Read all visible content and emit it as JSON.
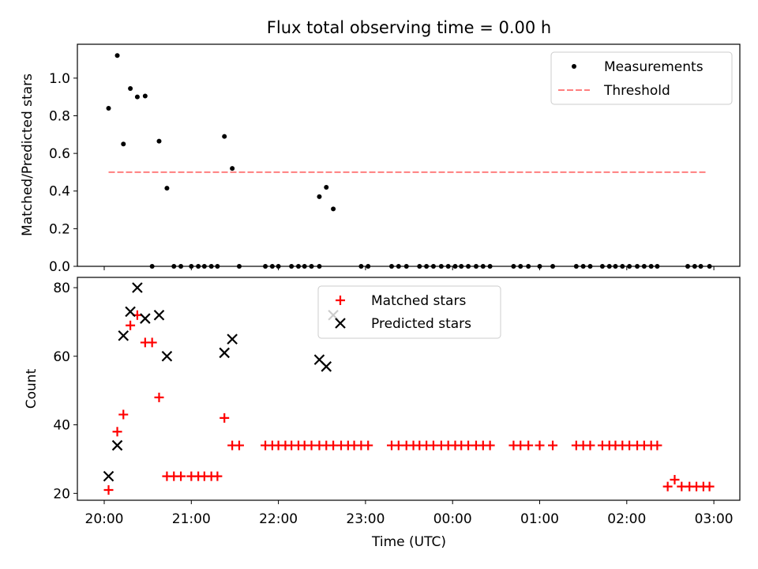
{
  "title": "Flux total observing time = 0.00 h",
  "colors": {
    "measurement": "#000000",
    "threshold": "#ff7f7f",
    "matched": "#ff0000",
    "predicted": "#000000"
  },
  "chart_data": [
    {
      "type": "scatter",
      "ylabel": "Matched/Predicted stars",
      "ylim": [
        0,
        1.18
      ],
      "yticks": [
        "0.0",
        "0.2",
        "0.4",
        "0.6",
        "0.8",
        "1.0"
      ],
      "legend_position": "top-right",
      "legend": [
        "Measurements",
        "Threshold"
      ],
      "measurements": {
        "x_hours": [
          20.05,
          20.15,
          20.22,
          20.3,
          20.38,
          20.47,
          20.63,
          20.72,
          21.38,
          21.47,
          22.47,
          22.55,
          22.63
        ],
        "y": [
          0.84,
          1.12,
          0.65,
          0.945,
          0.9,
          0.905,
          0.665,
          0.415,
          0.69,
          0.52,
          0.37,
          0.42,
          0.305
        ]
      },
      "zeros_x_hours": [
        20.55,
        20.8,
        20.88,
        21.0,
        21.08,
        21.15,
        21.23,
        21.3,
        21.55,
        21.85,
        21.93,
        22.0,
        22.15,
        22.23,
        22.3,
        22.38,
        22.47,
        22.95,
        23.03,
        23.3,
        23.38,
        23.47,
        23.62,
        23.7,
        23.78,
        23.87,
        23.95,
        24.03,
        24.1,
        24.18,
        24.27,
        24.35,
        24.43,
        24.7,
        24.78,
        24.87,
        25.0,
        25.15,
        25.42,
        25.5,
        25.58,
        25.72,
        25.8,
        25.87,
        25.95,
        26.03,
        26.12,
        26.2,
        26.28,
        26.35,
        26.7,
        26.78,
        26.85,
        26.95
      ],
      "threshold": {
        "x_hours": [
          20.05,
          26.93
        ],
        "y": 0.5
      }
    },
    {
      "type": "scatter",
      "xlabel": "Time (UTC)",
      "ylabel": "Count",
      "ylim": [
        18,
        83
      ],
      "yticks": [
        "20",
        "40",
        "60",
        "80"
      ],
      "xticks": [
        "20:00",
        "21:00",
        "22:00",
        "23:00",
        "00:00",
        "01:00",
        "02:00",
        "03:00"
      ],
      "legend_position": "top-center",
      "legend": [
        "Matched stars",
        "Predicted stars"
      ],
      "matched": {
        "x_hours": [
          20.05,
          20.15,
          20.22,
          20.3,
          20.38,
          20.47,
          20.55,
          20.63,
          20.72,
          20.8,
          20.88,
          21.0,
          21.08,
          21.15,
          21.23,
          21.3,
          21.38,
          21.47,
          21.55,
          21.85,
          21.93,
          22.0,
          22.08,
          22.15,
          22.23,
          22.3,
          22.38,
          22.47,
          22.55,
          22.63,
          22.72,
          22.8,
          22.87,
          22.95,
          23.03,
          23.3,
          23.38,
          23.47,
          23.55,
          23.62,
          23.7,
          23.78,
          23.87,
          23.95,
          24.03,
          24.1,
          24.18,
          24.27,
          24.35,
          24.43,
          24.7,
          24.78,
          24.87,
          25.0,
          25.15,
          25.42,
          25.5,
          25.58,
          25.72,
          25.8,
          25.87,
          25.95,
          26.03,
          26.12,
          26.2,
          26.28,
          26.35,
          26.47,
          26.55,
          26.63,
          26.72,
          26.8,
          26.88,
          26.95
        ],
        "y": [
          21,
          38,
          43,
          69,
          72,
          64,
          64,
          48,
          25,
          25,
          25,
          25,
          25,
          25,
          25,
          25,
          42,
          34,
          34,
          34,
          34,
          34,
          34,
          34,
          34,
          34,
          34,
          34,
          34,
          34,
          34,
          34,
          34,
          34,
          34,
          34,
          34,
          34,
          34,
          34,
          34,
          34,
          34,
          34,
          34,
          34,
          34,
          34,
          34,
          34,
          34,
          34,
          34,
          34,
          34,
          34,
          34,
          34,
          34,
          34,
          34,
          34,
          34,
          34,
          34,
          34,
          34,
          22,
          24,
          22,
          22,
          22,
          22,
          22
        ]
      },
      "predicted": {
        "x_hours": [
          20.05,
          20.15,
          20.22,
          20.3,
          20.38,
          20.47,
          20.63,
          20.72,
          21.38,
          21.47,
          22.47,
          22.55,
          22.63
        ],
        "y": [
          25,
          34,
          66,
          73,
          80,
          71,
          72,
          60,
          61,
          65,
          59,
          57,
          72
        ]
      }
    }
  ]
}
